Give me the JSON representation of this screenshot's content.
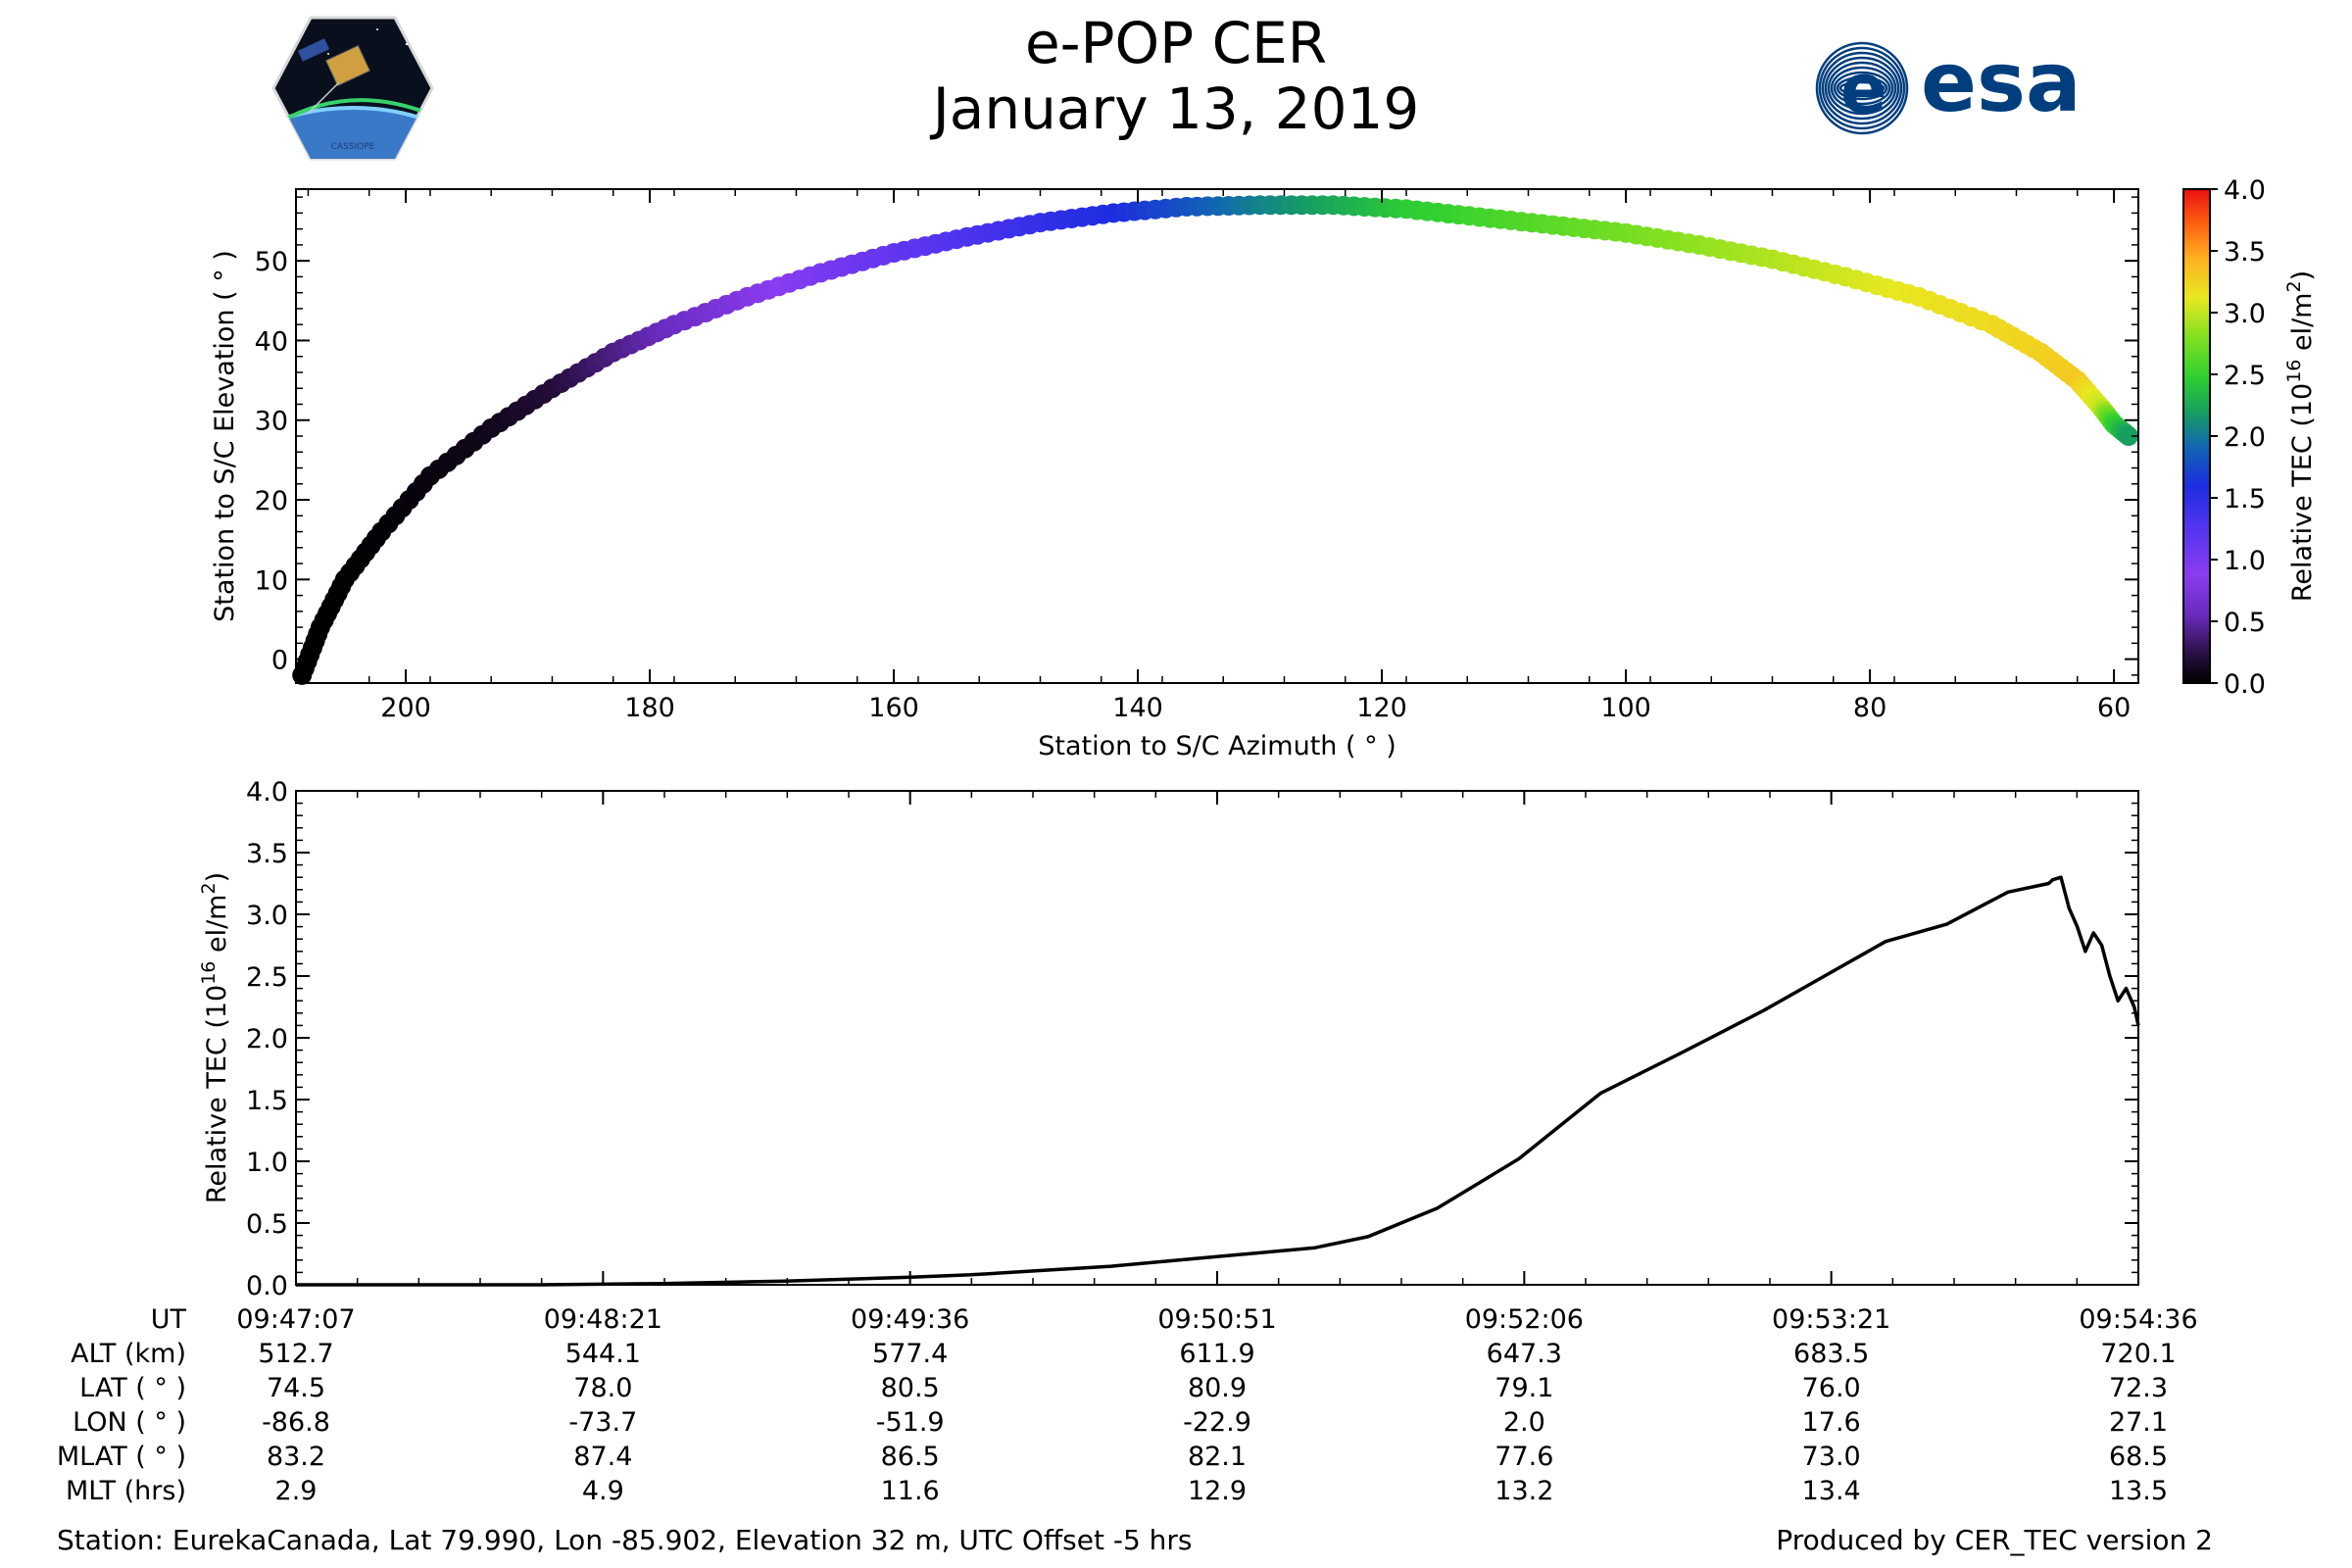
{
  "title": "e-POP CER",
  "subtitle": "January 13, 2019",
  "logo_left": {
    "text": "CASSIOPE"
  },
  "logo_right": {
    "text": "esa",
    "color": "#003e7e"
  },
  "chart_data": [
    {
      "type": "scatter",
      "title": "",
      "xlabel": "Station to S/C Azimuth ( ° )",
      "ylabel": "Station to S/C Elevation ( ° )",
      "xlim": [
        209,
        58
      ],
      "ylim": [
        -3,
        59
      ],
      "xticks": [
        200,
        180,
        160,
        140,
        120,
        100,
        80,
        60
      ],
      "yticks": [
        0,
        10,
        20,
        30,
        40,
        50
      ],
      "colorbar": {
        "label": "Relative TEC (10",
        "label_sup": "16",
        "label_end": " el/m",
        "label_sup2": "2",
        "label_close": ")",
        "min": 0.0,
        "max": 4.0,
        "ticks": [
          "0.0",
          "0.5",
          "1.0",
          "1.5",
          "2.0",
          "2.5",
          "3.0",
          "3.5",
          "4.0"
        ]
      },
      "points": [
        [
          208.5,
          -2,
          0.0
        ],
        [
          207,
          4,
          0.0
        ],
        [
          205,
          10,
          0.01
        ],
        [
          202,
          16,
          0.02
        ],
        [
          198,
          23,
          0.05
        ],
        [
          193,
          29,
          0.1
        ],
        [
          188,
          34,
          0.2
        ],
        [
          183,
          38.5,
          0.4
        ],
        [
          178,
          42,
          0.6
        ],
        [
          172,
          45.5,
          0.8
        ],
        [
          166,
          48.5,
          1.0
        ],
        [
          160,
          51,
          1.15
        ],
        [
          154,
          53,
          1.3
        ],
        [
          148,
          54.8,
          1.45
        ],
        [
          142,
          56,
          1.6
        ],
        [
          136,
          56.8,
          1.8
        ],
        [
          130,
          57,
          2.05
        ],
        [
          124,
          57,
          2.25
        ],
        [
          118,
          56.5,
          2.45
        ],
        [
          112,
          55.5,
          2.55
        ],
        [
          106,
          54.5,
          2.65
        ],
        [
          100,
          53.5,
          2.75
        ],
        [
          94,
          52,
          2.85
        ],
        [
          88,
          50.2,
          2.95
        ],
        [
          82,
          48,
          3.05
        ],
        [
          76,
          45.5,
          3.15
        ],
        [
          70,
          42,
          3.2
        ],
        [
          66,
          38.5,
          3.25
        ],
        [
          63,
          35,
          3.3
        ],
        [
          61,
          31.5,
          3.0
        ],
        [
          60,
          29.5,
          2.5
        ],
        [
          58.8,
          28,
          2.2
        ]
      ]
    },
    {
      "type": "line",
      "title": "",
      "xlabel": "",
      "ylabel": "Relative TEC (10",
      "ylabel_sup": "16",
      "ylabel_end": " el/m",
      "ylabel_sup2": "2",
      "ylabel_close": ")",
      "xlim": [
        0,
        452
      ],
      "ylim": [
        0,
        4.0
      ],
      "yticks": [
        "0.0",
        "0.5",
        "1.0",
        "1.5",
        "2.0",
        "2.5",
        "3.0",
        "3.5",
        "4.0"
      ],
      "x_seconds": [
        0,
        30,
        60,
        90,
        120,
        150,
        165,
        170,
        180,
        200,
        220,
        240,
        250,
        263,
        280,
        300,
        320,
        340,
        350,
        360,
        375,
        390,
        405,
        420,
        430,
        431,
        433,
        435,
        437,
        439,
        441,
        443,
        445,
        447,
        449,
        451,
        452
      ],
      "values": [
        0.0,
        0.0,
        0.0,
        0.01,
        0.03,
        0.06,
        0.08,
        0.09,
        0.11,
        0.15,
        0.21,
        0.27,
        0.3,
        0.39,
        0.62,
        1.02,
        1.55,
        1.88,
        2.05,
        2.22,
        2.5,
        2.78,
        2.92,
        3.18,
        3.25,
        3.28,
        3.3,
        3.05,
        2.9,
        2.7,
        2.85,
        2.75,
        2.5,
        2.3,
        2.4,
        2.25,
        2.1
      ]
    }
  ],
  "table": {
    "row_labels": [
      "UT",
      "ALT (km)",
      "LAT ( ° )",
      "LON ( ° )",
      "MLAT ( ° )",
      "MLT (hrs)"
    ],
    "columns": [
      [
        "09:47:07",
        "512.7",
        "74.5",
        "-86.8",
        "83.2",
        "2.9"
      ],
      [
        "09:48:21",
        "544.1",
        "78.0",
        "-73.7",
        "87.4",
        "4.9"
      ],
      [
        "09:49:36",
        "577.4",
        "80.5",
        "-51.9",
        "86.5",
        "11.6"
      ],
      [
        "09:50:51",
        "611.9",
        "80.9",
        "-22.9",
        "82.1",
        "12.9"
      ],
      [
        "09:52:06",
        "647.3",
        "79.1",
        "2.0",
        "77.6",
        "13.2"
      ],
      [
        "09:53:21",
        "683.5",
        "76.0",
        "17.6",
        "73.0",
        "13.4"
      ],
      [
        "09:54:36",
        "720.1",
        "72.3",
        "27.1",
        "68.5",
        "13.5"
      ]
    ]
  },
  "footer": {
    "station": "Station: EurekaCanada, Lat 79.990, Lon -85.902, Elevation 32 m, UTC Offset -5 hrs",
    "produced": "Produced by CER_TEC version 2"
  }
}
